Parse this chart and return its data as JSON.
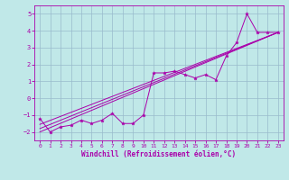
{
  "xlabel": "Windchill (Refroidissement éolien,°C)",
  "xlim": [
    -0.5,
    23.5
  ],
  "ylim": [
    -2.5,
    5.5
  ],
  "yticks": [
    -2,
    -1,
    0,
    1,
    2,
    3,
    4,
    5
  ],
  "xticks": [
    0,
    1,
    2,
    3,
    4,
    5,
    6,
    7,
    8,
    9,
    10,
    11,
    12,
    13,
    14,
    15,
    16,
    17,
    18,
    19,
    20,
    21,
    22,
    23
  ],
  "background_color": "#c0e8e8",
  "grid_color": "#99bbcc",
  "line_color": "#aa00aa",
  "line1_x": [
    0,
    1,
    2,
    3,
    4,
    5,
    6,
    7,
    8,
    9,
    10,
    11,
    12,
    13,
    14,
    15,
    16,
    17,
    18,
    19,
    20,
    21,
    22,
    23
  ],
  "line1_y": [
    -1.2,
    -2.0,
    -1.7,
    -1.6,
    -1.3,
    -1.5,
    -1.3,
    -0.9,
    -1.5,
    -1.5,
    -1.0,
    1.5,
    1.5,
    1.6,
    1.4,
    1.2,
    1.4,
    1.1,
    2.5,
    3.3,
    5.0,
    3.9,
    3.9,
    3.9
  ],
  "line2_x": [
    0,
    23
  ],
  "line2_y": [
    -2.0,
    3.9
  ],
  "line3_x": [
    0,
    23
  ],
  "line3_y": [
    -1.8,
    3.9
  ],
  "line4_x": [
    0,
    23
  ],
  "line4_y": [
    -1.55,
    3.9
  ],
  "ytick_labels": [
    "-2",
    "-1",
    "0",
    "1",
    "2",
    "3",
    "4",
    "5"
  ]
}
